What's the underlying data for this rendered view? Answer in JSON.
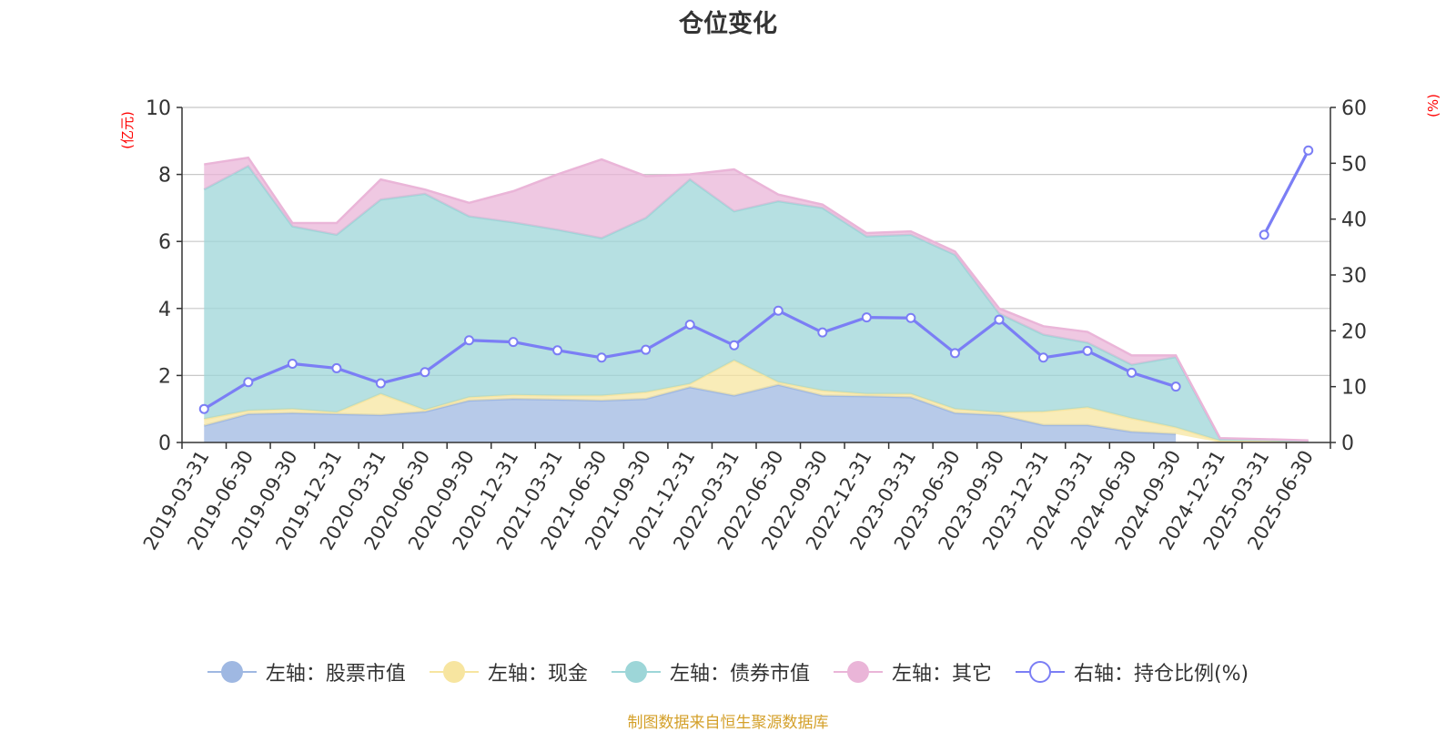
{
  "chart_data": {
    "type": "area",
    "title": "仓位变化",
    "y_left_label": "(亿元)",
    "y_right_label": "(%)",
    "y_left_range": [
      0,
      10
    ],
    "y_left_ticks": [
      "0",
      "2",
      "4",
      "6",
      "8",
      "10"
    ],
    "y_right_range": [
      0,
      60
    ],
    "y_right_ticks": [
      "0",
      "10",
      "20",
      "30",
      "40",
      "50",
      "60"
    ],
    "grid": true,
    "legend_position": "bottom",
    "categories": [
      "2019-03-31",
      "2019-06-30",
      "2019-09-30",
      "2019-12-31",
      "2020-03-31",
      "2020-06-30",
      "2020-09-30",
      "2020-12-31",
      "2021-03-31",
      "2021-06-30",
      "2021-09-30",
      "2021-12-31",
      "2022-03-31",
      "2022-06-30",
      "2022-09-30",
      "2022-12-31",
      "2023-03-31",
      "2023-06-30",
      "2023-09-30",
      "2023-12-31",
      "2024-03-31",
      "2024-06-30",
      "2024-09-30",
      "2024-12-31",
      "2025-03-31",
      "2025-06-30"
    ],
    "stacked_series": [
      {
        "name": "左轴：股票市值",
        "color": "#9fb8e2",
        "values": [
          0.5,
          0.85,
          0.88,
          0.85,
          0.82,
          0.92,
          1.25,
          1.3,
          1.28,
          1.25,
          1.3,
          1.65,
          1.4,
          1.72,
          1.4,
          1.38,
          1.35,
          0.88,
          0.82,
          0.52,
          0.52,
          0.32,
          0.25,
          null,
          null,
          null
        ]
      },
      {
        "name": "左轴：现金",
        "color": "#f7e5a0",
        "values": [
          0.2,
          0.1,
          0.12,
          0.05,
          0.63,
          0.05,
          0.1,
          0.12,
          0.12,
          0.15,
          0.2,
          0.1,
          1.05,
          0.08,
          0.15,
          0.07,
          0.1,
          0.12,
          0.08,
          0.4,
          0.53,
          0.4,
          0.2,
          0.05,
          0.05,
          0.02
        ]
      },
      {
        "name": "左轴：债券市值",
        "color": "#9dd6d8",
        "values": [
          6.85,
          7.3,
          5.45,
          5.3,
          5.8,
          6.45,
          5.4,
          5.15,
          4.95,
          4.7,
          5.2,
          6.1,
          4.45,
          5.4,
          5.45,
          4.7,
          4.75,
          4.6,
          2.95,
          2.3,
          1.93,
          1.6,
          2.1,
          0.05,
          0.03,
          0.03
        ]
      },
      {
        "name": "左轴：其它",
        "color": "#eab5d8",
        "values": [
          0.75,
          0.25,
          0.1,
          0.35,
          0.6,
          0.13,
          0.4,
          0.93,
          1.65,
          2.35,
          1.25,
          0.15,
          1.25,
          0.2,
          0.1,
          0.1,
          0.1,
          0.1,
          0.15,
          0.25,
          0.32,
          0.28,
          0.05,
          0.03,
          0.02,
          0.01
        ]
      }
    ],
    "line_series": {
      "name": "右轴：持仓比例(%)",
      "color": "#7b7ef5",
      "values": [
        6,
        10.8,
        14.1,
        13.3,
        10.6,
        12.6,
        18.3,
        18,
        16.5,
        15.2,
        16.6,
        21.1,
        17.4,
        23.6,
        19.7,
        22.4,
        22.3,
        16,
        22,
        15.2,
        16.4,
        12.5,
        10,
        null,
        37.2,
        52.3
      ]
    }
  },
  "legend": [
    {
      "label": "左轴：股票市值",
      "color": "#9fb8e2",
      "style": "filled"
    },
    {
      "label": "左轴：现金",
      "color": "#f7e5a0",
      "style": "filled"
    },
    {
      "label": "左轴：债券市值",
      "color": "#9dd6d8",
      "style": "filled"
    },
    {
      "label": "左轴：其它",
      "color": "#eab5d8",
      "style": "filled"
    },
    {
      "label": "右轴：持仓比例(%)",
      "color": "#7b7ef5",
      "style": "hollow"
    }
  ],
  "source_note": "制图数据来自恒生聚源数据库",
  "colors": {
    "axis_label": "#ff0000",
    "grid": "#c8c8c8",
    "text": "#333333"
  }
}
